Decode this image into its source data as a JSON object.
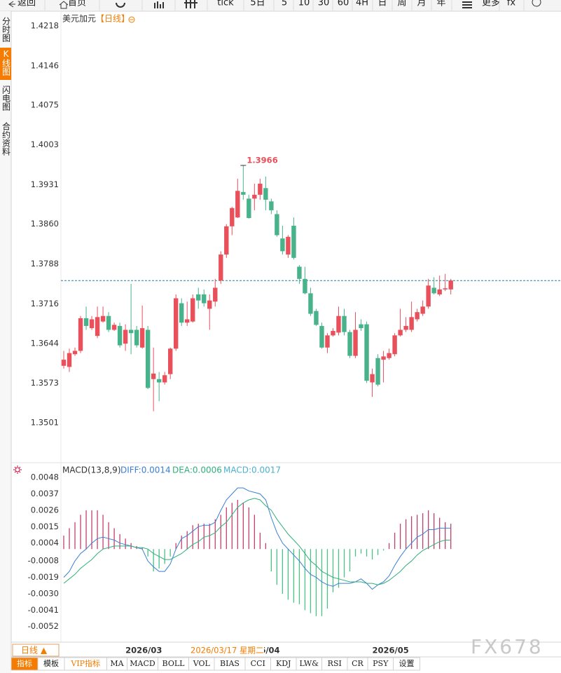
{
  "toolbar": [
    "返回",
    "首页",
    "tick",
    "5日",
    "5",
    "10",
    "30",
    "60",
    "4H",
    "日",
    "周",
    "月",
    "年",
    "更多",
    "fx"
  ],
  "sidebar": [
    "分时图",
    "K线图",
    "闪电图",
    "合约资料"
  ],
  "chart_data": [
    {
      "type": "candlestick",
      "title": "美元加元",
      "period": "【日线】",
      "categories": [
        null,
        null,
        null,
        null,
        null,
        null,
        null,
        null,
        null,
        null,
        null,
        "2026/03",
        null,
        null,
        null,
        null,
        null,
        null,
        null,
        null,
        null,
        null,
        null,
        null,
        null,
        null,
        null,
        null,
        null,
        null,
        null,
        null,
        "2026/04",
        null,
        null,
        null,
        null,
        null,
        null,
        null,
        null,
        null,
        null,
        null,
        null,
        null,
        null,
        null,
        null,
        null,
        null,
        null,
        null,
        null,
        null,
        "2026/05",
        null,
        null,
        null,
        null,
        null,
        null,
        null,
        null,
        null,
        null,
        null,
        null,
        null,
        null
      ],
      "open": [
        1.3604,
        1.3602,
        1.3625,
        1.3631,
        1.369,
        1.3672,
        1.3658,
        1.3684,
        1.3694,
        1.3669,
        1.3676,
        1.3644,
        1.3669,
        1.3669,
        1.3637,
        1.3669,
        1.358,
        1.358,
        1.3574,
        1.3589,
        1.3635,
        1.3717,
        1.3682,
        1.3684,
        1.3733,
        1.3733,
        1.3707,
        1.372,
        1.3758,
        1.3805,
        1.3856,
        1.3872,
        1.3918,
        1.3906,
        1.3906,
        1.3913,
        1.3925,
        1.3901,
        1.3878,
        1.3834,
        1.3805,
        1.3857,
        1.3783,
        1.3761,
        1.3735,
        1.3703,
        1.3676,
        1.3637,
        1.3659,
        1.3664,
        1.3694,
        1.3665,
        1.3622,
        1.3679,
        1.3679,
        1.3574,
        1.3618,
        1.3615,
        1.3618,
        1.3625,
        1.3659,
        1.3669,
        1.3669,
        1.3688,
        1.3698,
        1.3711,
        1.3745,
        1.3733,
        1.3742,
        1.3742
      ],
      "high": [
        1.3631,
        1.3635,
        1.3637,
        1.3694,
        1.3711,
        1.3694,
        1.3711,
        1.3711,
        1.3701,
        1.3682,
        1.3682,
        1.3679,
        1.3752,
        1.3676,
        1.3713,
        1.3676,
        1.3637,
        1.3593,
        1.3593,
        1.3637,
        1.3733,
        1.3726,
        1.372,
        1.3733,
        1.3745,
        1.3742,
        1.3733,
        1.3761,
        1.3811,
        1.386,
        1.3891,
        1.3942,
        1.3966,
        1.3913,
        1.3933,
        1.3942,
        1.3946,
        1.3906,
        1.3885,
        1.3857,
        1.384,
        1.3872,
        1.3786,
        1.3783,
        1.3745,
        1.3707,
        1.3682,
        1.3663,
        1.3672,
        1.3711,
        1.3707,
        1.3669,
        1.3701,
        1.3688,
        1.3684,
        1.3599,
        1.3625,
        1.3631,
        1.3635,
        1.3663,
        1.3707,
        1.3692,
        1.372,
        1.3707,
        1.3722,
        1.3761,
        1.3764,
        1.3767,
        1.377,
        1.3761
      ],
      "low": [
        1.3599,
        1.3593,
        1.3622,
        1.3627,
        1.3669,
        1.3669,
        1.3654,
        1.3682,
        1.3665,
        1.3667,
        1.3637,
        1.3631,
        1.3625,
        1.3637,
        1.3635,
        1.3562,
        1.3522,
        1.354,
        1.357,
        1.358,
        1.3631,
        1.3676,
        1.3676,
        1.3682,
        1.3707,
        1.3711,
        1.3669,
        1.3711,
        1.3752,
        1.3799,
        1.384,
        1.3871,
        1.3904,
        1.387,
        1.3885,
        1.3904,
        1.3885,
        1.3878,
        1.3837,
        1.3805,
        1.3799,
        1.3796,
        1.3752,
        1.3733,
        1.3694,
        1.3676,
        1.3635,
        1.3627,
        1.3657,
        1.3659,
        1.3659,
        1.3618,
        1.3618,
        1.3667,
        1.3573,
        1.3548,
        1.3567,
        1.3574,
        1.3615,
        1.3621,
        1.3657,
        1.3665,
        1.3665,
        1.3684,
        1.3694,
        1.3707,
        1.3733,
        1.373,
        1.3739,
        1.3733
      ],
      "close": [
        1.3615,
        1.3627,
        1.3631,
        1.369,
        1.3676,
        1.3688,
        1.3692,
        1.3694,
        1.3669,
        1.3678,
        1.3641,
        1.3669,
        1.3663,
        1.3641,
        1.3672,
        1.3564,
        1.359,
        1.3574,
        1.3587,
        1.3635,
        1.3726,
        1.3682,
        1.3688,
        1.3726,
        1.3722,
        1.3717,
        1.3722,
        1.3745,
        1.3805,
        1.3856,
        1.3889,
        1.392,
        1.3913,
        1.3871,
        1.3913,
        1.3933,
        1.3904,
        1.3885,
        1.384,
        1.3811,
        1.3837,
        1.3799,
        1.3761,
        1.3735,
        1.3698,
        1.3678,
        1.3637,
        1.3659,
        1.3667,
        1.3694,
        1.3665,
        1.3622,
        1.3669,
        1.3672,
        1.3577,
        1.3589,
        1.357,
        1.3621,
        1.3627,
        1.3659,
        1.3669,
        1.3676,
        1.3692,
        1.3701,
        1.3711,
        1.3749,
        1.3735,
        1.3742,
        1.3744,
        1.3758
      ],
      "up_color": "#e8505b",
      "down_color": "#48b28a",
      "ylim": [
        1.3429,
        1.4242
      ],
      "yticks": [
        1.4218,
        1.4146,
        1.4075,
        1.4003,
        1.3931,
        {
          "value": 1.386,
          "label": "1.3860"
        },
        1.3788,
        1.3716,
        1.3644,
        1.3573,
        1.3501
      ],
      "reference_line": 1.3758,
      "high_annotation": 1.3966,
      "grid": false
    },
    {
      "type": "macd",
      "title": "MACD(13,8,9)",
      "series": [
        {
          "name": "DIFF:0.0014",
          "kind": "line",
          "color": "#3a7fd5",
          "values": [
            -0.0019,
            -0.0015,
            -0.0008,
            -0.0003,
            0.0,
            0.0004,
            0.0007,
            0.0008,
            0.0007,
            0.0006,
            0.0004,
            0.0003,
            0.0002,
            0.0001,
            0.0,
            -0.0008,
            -0.0012,
            -0.0015,
            -0.0015,
            -0.001,
            0.0,
            0.0007,
            0.0009,
            0.0012,
            0.0015,
            0.0016,
            0.0016,
            0.0018,
            0.0026,
            0.0033,
            0.0037,
            0.0041,
            0.0041,
            0.0039,
            0.0038,
            0.0037,
            0.0033,
            0.0021,
            0.0011,
            0.0004,
            0.0,
            -0.0004,
            -0.0008,
            -0.0013,
            -0.0017,
            -0.0019,
            -0.0022,
            -0.0024,
            -0.0025,
            -0.0023,
            -0.0023,
            -0.0023,
            -0.0022,
            -0.002,
            -0.0023,
            -0.0027,
            -0.0024,
            -0.0022,
            -0.0018,
            -0.0011,
            -0.0005,
            0.0,
            0.0004,
            0.0008,
            0.001,
            0.0013,
            0.0013,
            0.0014,
            0.0014,
            0.0014
          ]
        },
        {
          "name": "DEA:0.0006",
          "kind": "line",
          "color": "#30b07a",
          "values": [
            -0.0023,
            -0.002,
            -0.0017,
            -0.0013,
            -0.001,
            -0.0007,
            -0.0003,
            0.0,
            0.0001,
            0.0002,
            0.0002,
            0.0002,
            0.0002,
            0.0001,
            0.0001,
            0.0,
            -0.0003,
            -0.0005,
            -0.0007,
            -0.0007,
            -0.0005,
            -0.0003,
            0.0,
            0.0003,
            0.0005,
            0.0008,
            0.0009,
            0.0011,
            0.0015,
            0.0018,
            0.0023,
            0.0028,
            0.0031,
            0.0033,
            0.0034,
            0.0033,
            0.0029,
            0.0026,
            0.002,
            0.0015,
            0.001,
            0.0006,
            0.0002,
            -0.0003,
            -0.0008,
            -0.0011,
            -0.0015,
            -0.0017,
            -0.0019,
            -0.002,
            -0.0021,
            -0.0022,
            -0.0022,
            -0.0022,
            -0.0023,
            -0.0023,
            -0.0024,
            -0.0023,
            -0.0021,
            -0.0018,
            -0.0015,
            -0.0011,
            -0.0008,
            -0.0004,
            -0.0001,
            0.0001,
            0.0003,
            0.0005,
            0.0006,
            0.0006
          ]
        },
        {
          "name": "MACD:0.0017",
          "kind": "histogram",
          "color": "#c2416b",
          "negative_color": "#4cbf83",
          "label_color": "#4ab2cf",
          "values": [
            0.0009,
            0.0014,
            0.0018,
            0.0023,
            0.0026,
            0.0026,
            0.0026,
            0.0023,
            0.0018,
            0.0014,
            0.001,
            0.0007,
            0.0004,
            0.0002,
            0.0001,
            -0.0005,
            -0.0015,
            -0.0013,
            -0.001,
            -0.0005,
            0.0004,
            0.0009,
            0.0012,
            0.0016,
            0.0017,
            0.0017,
            0.0017,
            0.002,
            0.0023,
            0.0028,
            0.0031,
            0.0033,
            0.0031,
            0.0028,
            0.0023,
            0.0011,
            0.0004,
            -0.0015,
            -0.0024,
            -0.003,
            -0.0034,
            -0.0036,
            -0.0037,
            -0.0041,
            -0.0043,
            -0.0045,
            -0.0045,
            -0.004,
            -0.0029,
            -0.0026,
            -0.0019,
            -0.0015,
            -0.0005,
            -0.0003,
            -0.0005,
            -0.0007,
            -0.0004,
            -0.0001,
            0.0004,
            0.0011,
            0.0017,
            0.002,
            0.0022,
            0.0023,
            0.0024,
            0.0026,
            0.0024,
            0.0021,
            0.0018,
            0.0017
          ]
        }
      ],
      "ylim": [
        -0.0062,
        0.0057
      ],
      "yticks": [
        0.0048,
        0.0037,
        0.0026,
        0.0015,
        0.0004,
        -0.0008,
        -0.0019,
        {
          "value": -0.003,
          "label": "-0.0030"
        },
        -0.0041,
        -0.0052
      ],
      "grid": false
    }
  ],
  "crosshair_date": "2026/03/17 星期二",
  "period_button": "日线 ▲",
  "tabs": [
    "指标",
    "模板",
    "VIP指标",
    "MA",
    "MACD",
    "BOLL",
    "VOL",
    "BIAS",
    "CCI",
    "KDJ",
    "LW&",
    "RSI",
    "CR",
    "PSY",
    "设置"
  ],
  "watermark": "FX678"
}
